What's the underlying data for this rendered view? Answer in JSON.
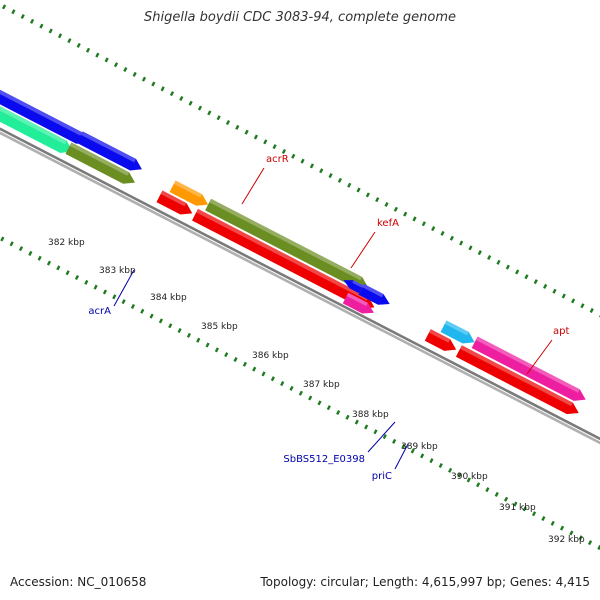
{
  "title": "Shigella boydii CDC 3083-94, complete genome",
  "footer": {
    "accession": "Accession: NC_010658",
    "summary": "Topology: circular; Length: 4,615,997 bp; Genes: 4,415"
  },
  "colors": {
    "backbone": "#8a8a8a",
    "ticks": "#1e7a1e",
    "red": "#ee0000",
    "blue": "#0a0aee",
    "olive": "#6b8e23",
    "orange": "#ff9900",
    "cyan": "#21b7ee",
    "magenta": "#ee1ea0",
    "aqua": "#22ee99",
    "label_red": "#cc0000",
    "label_blue": "#0000aa"
  },
  "ticks": [
    {
      "label": "382 kbp"
    },
    {
      "label": "383 kbp"
    },
    {
      "label": "384 kbp"
    },
    {
      "label": "385 kbp"
    },
    {
      "label": "386 kbp"
    },
    {
      "label": "387 kbp"
    },
    {
      "label": "388 kbp"
    },
    {
      "label": "389 kbp"
    },
    {
      "label": "390 kbp"
    },
    {
      "label": "391 kbp"
    },
    {
      "label": "392 kbp"
    }
  ],
  "features": [
    {
      "name": "acrA",
      "color": "olive",
      "strand": "reverse"
    },
    {
      "name": "acrR",
      "color": "orange",
      "strand": "forward"
    },
    {
      "name": "kefA",
      "color": "olive",
      "strand": "forward"
    },
    {
      "name": "priC",
      "color": "magenta",
      "strand": "reverse"
    },
    {
      "name": "SbBS512_E0398",
      "color": "blue",
      "strand": "reverse"
    },
    {
      "name": "apt",
      "color": "cyan",
      "strand": "forward"
    }
  ],
  "gene_labels": [
    {
      "text": "acrR",
      "color": "label_red"
    },
    {
      "text": "kefA",
      "color": "label_red"
    },
    {
      "text": "apt",
      "color": "label_red"
    },
    {
      "text": "acrA",
      "color": "label_blue"
    },
    {
      "text": "SbBS512_E0398",
      "color": "label_blue"
    },
    {
      "text": "priC",
      "color": "label_blue"
    }
  ]
}
